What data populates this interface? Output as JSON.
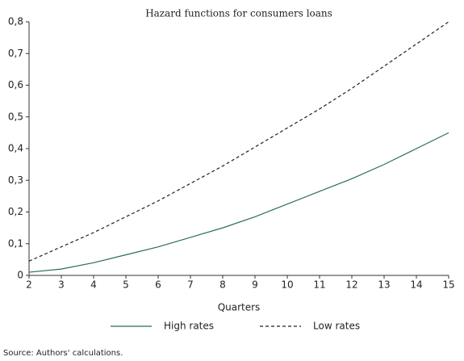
{
  "chart_data": {
    "type": "line",
    "title": "Hazard functions for consumers loans",
    "x_label": "Quarters",
    "source": "Source: Authors' calculations.",
    "x": [
      2,
      3,
      4,
      5,
      6,
      7,
      8,
      9,
      10,
      11,
      12,
      13,
      14,
      15
    ],
    "series": [
      {
        "name": "High rates",
        "color": "#2e6b5e",
        "line_style": "solid",
        "values": [
          0.01,
          0.02,
          0.04,
          0.065,
          0.09,
          0.12,
          0.15,
          0.185,
          0.225,
          0.265,
          0.305,
          0.35,
          0.4,
          0.45
        ]
      },
      {
        "name": "Low rates",
        "color": "#222222",
        "line_style": "dashed",
        "values": [
          0.045,
          0.09,
          0.135,
          0.185,
          0.235,
          0.29,
          0.345,
          0.405,
          0.465,
          0.525,
          0.59,
          0.66,
          0.73,
          0.8
        ]
      }
    ],
    "xlim": [
      2,
      15
    ],
    "xticks": [
      2,
      3,
      4,
      5,
      6,
      7,
      8,
      9,
      10,
      11,
      12,
      13,
      14,
      15
    ],
    "ylim": [
      0,
      0.8
    ],
    "yticks": [
      0,
      {
        "value": 0.1,
        "label": "0,1"
      },
      {
        "value": 0.2,
        "label": "0,2"
      },
      {
        "value": 0.3,
        "label": "0,3"
      },
      {
        "value": 0.4,
        "label": "0,4"
      },
      {
        "value": 0.5,
        "label": "0,5"
      },
      {
        "value": 0.6,
        "label": "0,6"
      },
      {
        "value": 0.7,
        "label": "0,7"
      },
      {
        "value": 0.8,
        "label": "0,8"
      }
    ],
    "legend": "bottom"
  }
}
